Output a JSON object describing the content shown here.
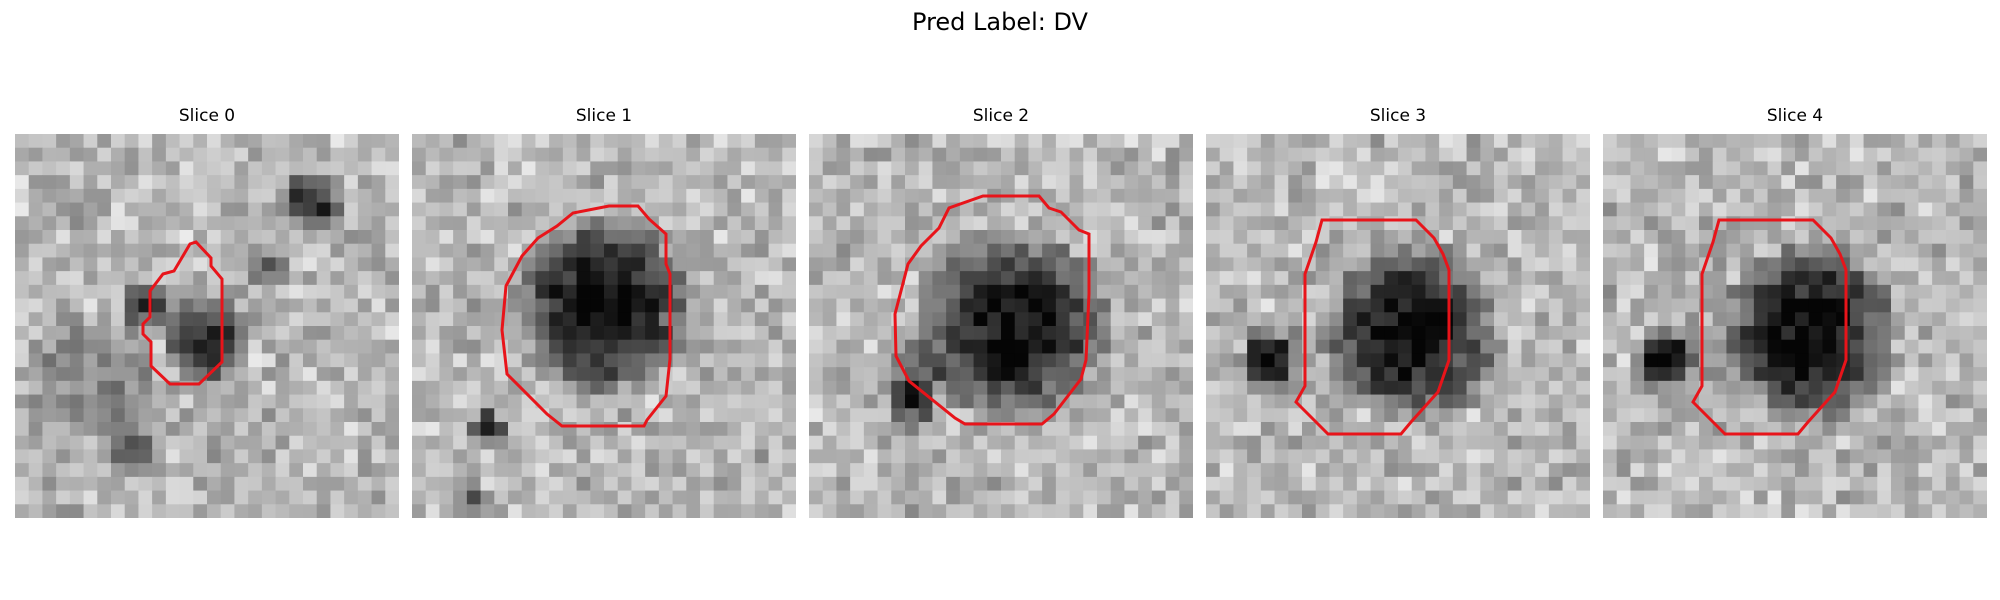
{
  "figure": {
    "title": "Pred Label: DV"
  },
  "colors": {
    "contour": "#e8141a",
    "image_colormap": "grayscale"
  },
  "panels": [
    {
      "title": "Slice 0",
      "image_description_tag": "grayscale-ct-patch"
    },
    {
      "title": "Slice 1",
      "image_description_tag": "grayscale-ct-patch"
    },
    {
      "title": "Slice 2",
      "image_description_tag": "grayscale-ct-patch"
    },
    {
      "title": "Slice 3",
      "image_description_tag": "grayscale-ct-patch"
    },
    {
      "title": "Slice 4",
      "image_description_tag": "grayscale-ct-patch"
    }
  ]
}
